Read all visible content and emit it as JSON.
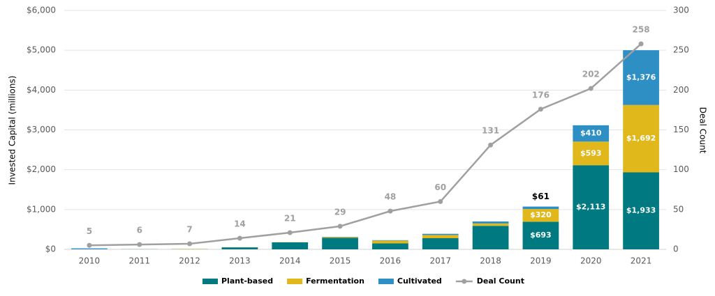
{
  "chart_data": {
    "type": "bar",
    "y_label": "Invested Capital (millions)",
    "y2_label": "Deal Count",
    "categories": [
      "2010",
      "2011",
      "2012",
      "2013",
      "2014",
      "2015",
      "2016",
      "2017",
      "2018",
      "2019",
      "2020",
      "2021"
    ],
    "series": [
      {
        "name": "Plant-based",
        "color": "#007a80",
        "values": [
          5,
          3,
          5,
          50,
          175,
          290,
          150,
          280,
          590,
          693,
          2113,
          1933
        ],
        "value_labels": [
          null,
          null,
          null,
          null,
          null,
          null,
          null,
          null,
          null,
          "$693",
          "$2,113",
          "$1,933"
        ]
      },
      {
        "name": "Fermentation",
        "color": "#e0b81c",
        "values": [
          0,
          0,
          5,
          5,
          5,
          20,
          70,
          80,
          60,
          320,
          593,
          1692
        ],
        "value_labels": [
          null,
          null,
          null,
          null,
          null,
          null,
          null,
          null,
          null,
          "$320",
          "$593",
          "$1,692"
        ]
      },
      {
        "name": "Cultivated",
        "color": "#2d8fc4",
        "values": [
          20,
          0,
          0,
          0,
          0,
          5,
          10,
          30,
          50,
          61,
          410,
          1376
        ],
        "value_labels": [
          null,
          null,
          null,
          null,
          null,
          null,
          null,
          null,
          null,
          "$61",
          "$410",
          "$1,376"
        ]
      },
      {
        "name": "Deal Count",
        "type": "line",
        "axis": "y2",
        "color": "#a0a0a0",
        "values": [
          5,
          6,
          7,
          14,
          21,
          29,
          48,
          60,
          131,
          176,
          202,
          258
        ]
      }
    ],
    "ylim": [
      0,
      6000
    ],
    "yticks": [
      {
        "value": 0,
        "label": "$0"
      },
      {
        "value": 1000,
        "label": "$1,000"
      },
      {
        "value": 2000,
        "label": "$2,000"
      },
      {
        "value": 3000,
        "label": "$3,000"
      },
      {
        "value": 4000,
        "label": "$4,000"
      },
      {
        "value": 5000,
        "label": "$5,000"
      },
      {
        "value": 6000,
        "label": "$6,000"
      }
    ],
    "y2lim": [
      0,
      300
    ],
    "y2ticks": [
      0,
      50,
      100,
      150,
      200,
      250,
      300
    ],
    "grid": true,
    "legend": "bottom"
  }
}
